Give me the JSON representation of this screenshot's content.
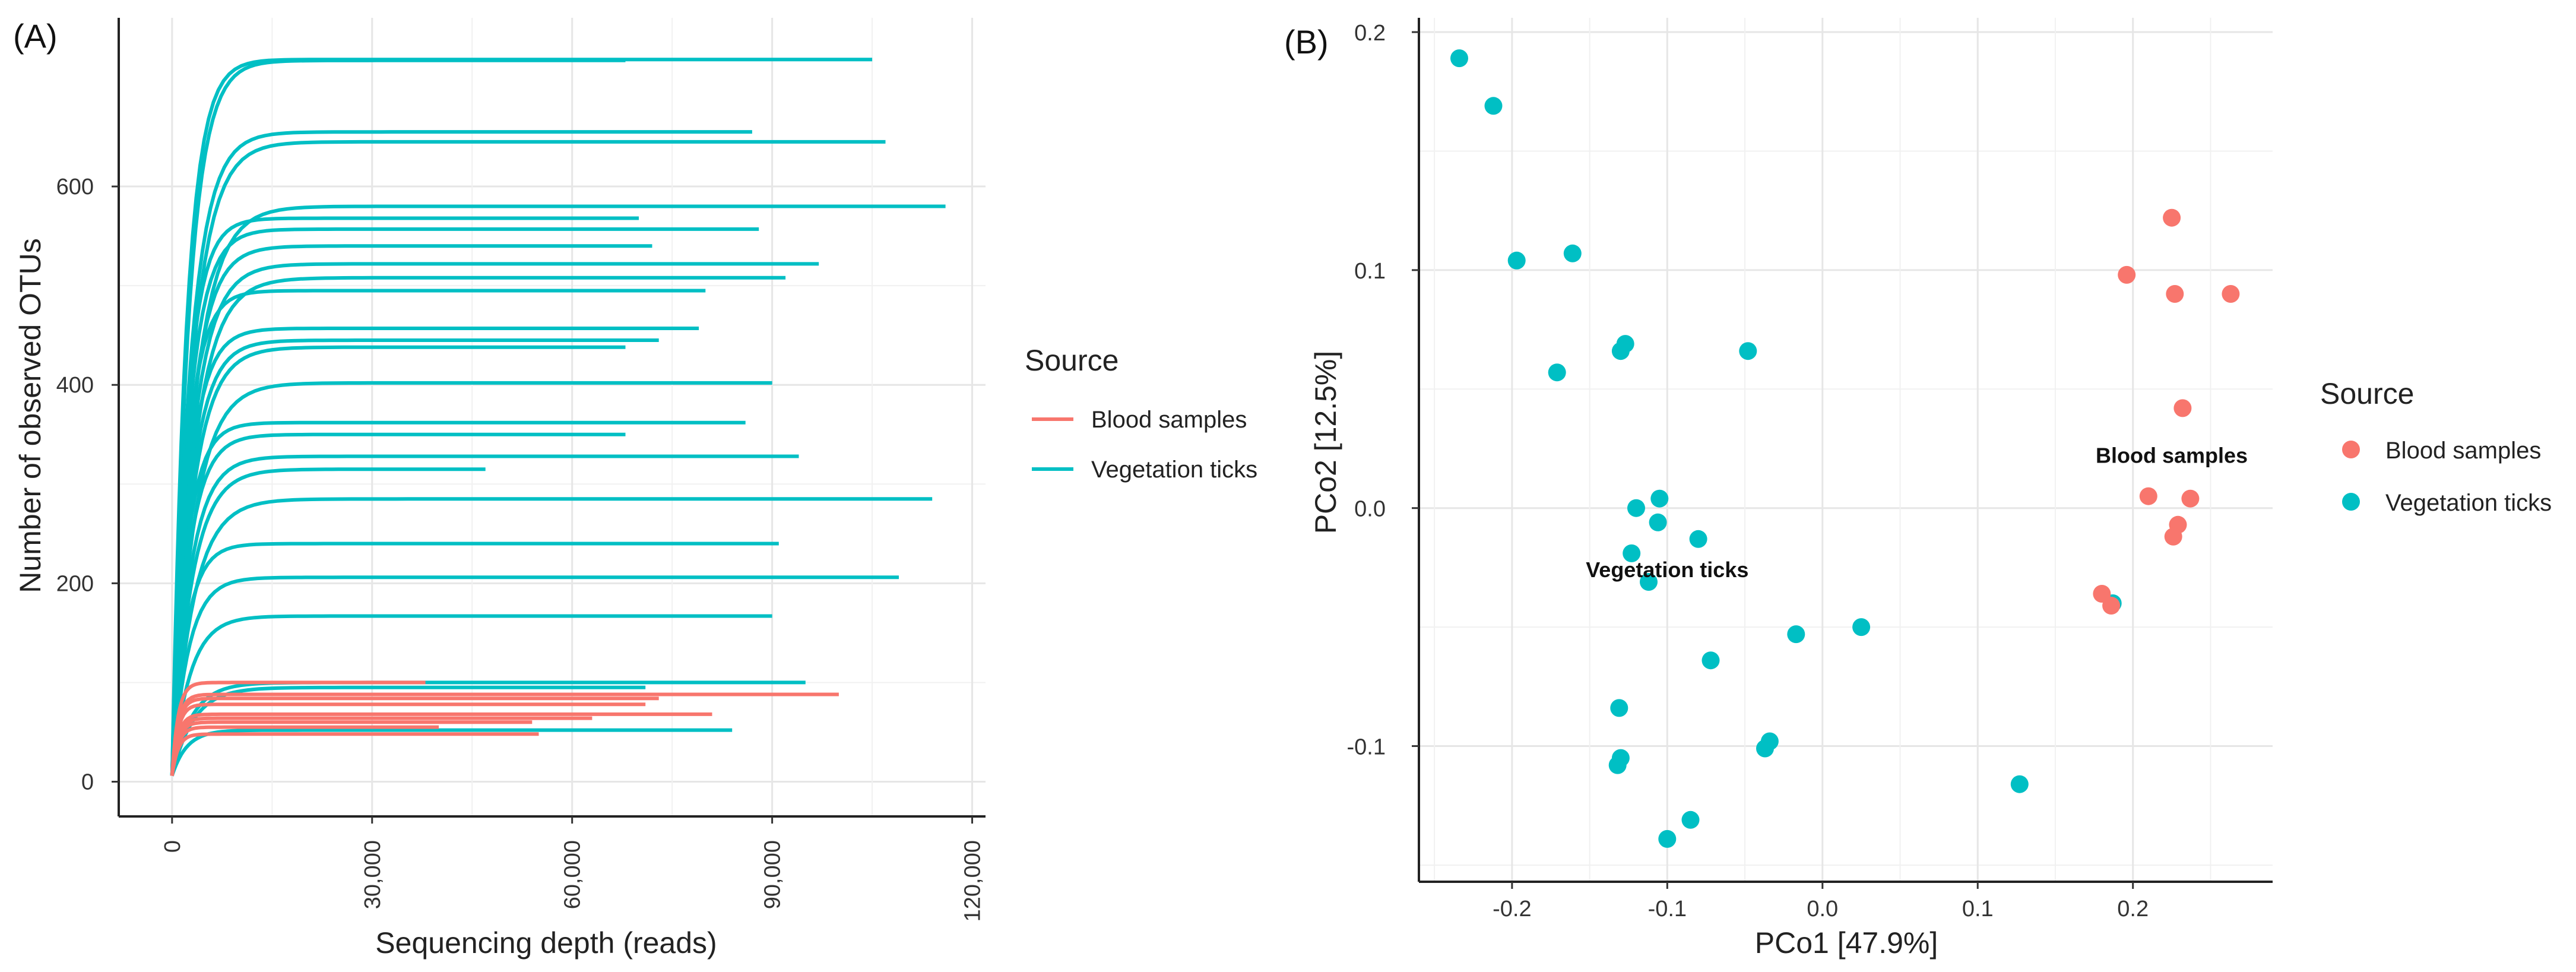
{
  "colors": {
    "blood": "#F8766D",
    "vegetation": "#00BFC4",
    "grid": "#e6e6e6",
    "axis": "#222222"
  },
  "chart_data": [
    {
      "panel": "(A)",
      "type": "line",
      "title": "",
      "xlabel": "Sequencing depth (reads)",
      "ylabel": "Number of observed OTUs",
      "xlim": [
        -8000,
        122000
      ],
      "ylim": [
        -35,
        770
      ],
      "x_ticks": [
        0,
        30000,
        60000,
        90000,
        120000
      ],
      "x_tick_labels": [
        "0",
        "30,000",
        "60,000",
        "90,000",
        "120,000"
      ],
      "y_ticks": [
        0,
        200,
        400,
        600
      ],
      "y_tick_labels": [
        "0",
        "200",
        "400",
        "600"
      ],
      "legend": {
        "title": "Source",
        "position": "right",
        "items": [
          {
            "label": "Blood samples",
            "series": "blood"
          },
          {
            "label": "Vegetation ticks",
            "series": "vegetation"
          }
        ]
      },
      "series": [
        {
          "name": "Vegetation ticks",
          "key": "vegetation",
          "curves": [
            {
              "max_depth": 105000,
              "plateau": 728
            },
            {
              "max_depth": 68000,
              "plateau": 727
            },
            {
              "max_depth": 87000,
              "plateau": 655
            },
            {
              "max_depth": 107000,
              "plateau": 645
            },
            {
              "max_depth": 116000,
              "plateau": 580
            },
            {
              "max_depth": 70000,
              "plateau": 568
            },
            {
              "max_depth": 88000,
              "plateau": 557
            },
            {
              "max_depth": 72000,
              "plateau": 540
            },
            {
              "max_depth": 97000,
              "plateau": 522
            },
            {
              "max_depth": 92000,
              "plateau": 508
            },
            {
              "max_depth": 80000,
              "plateau": 495
            },
            {
              "max_depth": 79000,
              "plateau": 457
            },
            {
              "max_depth": 73000,
              "plateau": 445
            },
            {
              "max_depth": 68000,
              "plateau": 438
            },
            {
              "max_depth": 90000,
              "plateau": 402
            },
            {
              "max_depth": 86000,
              "plateau": 362
            },
            {
              "max_depth": 68000,
              "plateau": 350
            },
            {
              "max_depth": 94000,
              "plateau": 328
            },
            {
              "max_depth": 47000,
              "plateau": 315
            },
            {
              "max_depth": 114000,
              "plateau": 285
            },
            {
              "max_depth": 91000,
              "plateau": 240
            },
            {
              "max_depth": 109000,
              "plateau": 206
            },
            {
              "max_depth": 90000,
              "plateau": 167
            },
            {
              "max_depth": 95000,
              "plateau": 100
            },
            {
              "max_depth": 71000,
              "plateau": 95
            },
            {
              "max_depth": 84000,
              "plateau": 52
            }
          ]
        },
        {
          "name": "Blood samples",
          "key": "blood",
          "curves": [
            {
              "max_depth": 38000,
              "plateau": 100
            },
            {
              "max_depth": 100000,
              "plateau": 88
            },
            {
              "max_depth": 73000,
              "plateau": 84
            },
            {
              "max_depth": 71000,
              "plateau": 78
            },
            {
              "max_depth": 81000,
              "plateau": 68
            },
            {
              "max_depth": 63000,
              "plateau": 64
            },
            {
              "max_depth": 54000,
              "plateau": 60
            },
            {
              "max_depth": 40000,
              "plateau": 55
            },
            {
              "max_depth": 55000,
              "plateau": 48
            }
          ]
        }
      ]
    },
    {
      "panel": "(B)",
      "type": "scatter",
      "title": "",
      "xlabel": "PCo1 [47.9%]",
      "ylabel": "PCo2 [12.5%]",
      "xlim": [
        -0.26,
        0.29
      ],
      "ylim": [
        -0.157,
        0.206
      ],
      "x_ticks": [
        -0.2,
        -0.1,
        0.0,
        0.1,
        0.2
      ],
      "x_tick_labels": [
        "-0.2",
        "-0.1",
        "0.0",
        "0.1",
        "0.2"
      ],
      "y_ticks": [
        -0.1,
        0.0,
        0.1,
        0.2
      ],
      "y_tick_labels": [
        "-0.1",
        "0.0",
        "0.1",
        "0.2"
      ],
      "legend": {
        "title": "Source",
        "position": "right",
        "items": [
          {
            "label": "Blood samples",
            "series": "blood"
          },
          {
            "label": "Vegetation ticks",
            "series": "vegetation"
          }
        ]
      },
      "annotations": [
        {
          "text": "Blood samples",
          "x": 0.225,
          "y": 0.022
        },
        {
          "text": "Vegetation ticks",
          "x": -0.1,
          "y": -0.026
        }
      ],
      "series": [
        {
          "name": "Vegetation ticks",
          "key": "vegetation",
          "points": [
            [
              -0.234,
              0.189
            ],
            [
              -0.212,
              0.169
            ],
            [
              -0.197,
              0.104
            ],
            [
              -0.161,
              0.107
            ],
            [
              -0.171,
              0.057
            ],
            [
              -0.13,
              0.066
            ],
            [
              -0.127,
              0.069
            ],
            [
              -0.048,
              0.066
            ],
            [
              -0.12,
              0.0
            ],
            [
              -0.105,
              0.004
            ],
            [
              -0.106,
              -0.006
            ],
            [
              -0.08,
              -0.013
            ],
            [
              -0.123,
              -0.019
            ],
            [
              -0.112,
              -0.031
            ],
            [
              -0.072,
              -0.064
            ],
            [
              -0.017,
              -0.053
            ],
            [
              0.025,
              -0.05
            ],
            [
              -0.131,
              -0.084
            ],
            [
              -0.037,
              -0.101
            ],
            [
              -0.034,
              -0.098
            ],
            [
              -0.13,
              -0.105
            ],
            [
              -0.132,
              -0.108
            ],
            [
              -0.085,
              -0.131
            ],
            [
              -0.1,
              -0.139
            ],
            [
              0.127,
              -0.116
            ],
            [
              0.187,
              -0.04
            ]
          ]
        },
        {
          "name": "Blood samples",
          "key": "blood",
          "points": [
            [
              0.225,
              0.122
            ],
            [
              0.196,
              0.098
            ],
            [
              0.227,
              0.09
            ],
            [
              0.263,
              0.09
            ],
            [
              0.232,
              0.042
            ],
            [
              0.21,
              0.005
            ],
            [
              0.237,
              0.004
            ],
            [
              0.229,
              -0.007
            ],
            [
              0.226,
              -0.012
            ],
            [
              0.18,
              -0.036
            ],
            [
              0.186,
              -0.041
            ]
          ]
        }
      ]
    }
  ]
}
